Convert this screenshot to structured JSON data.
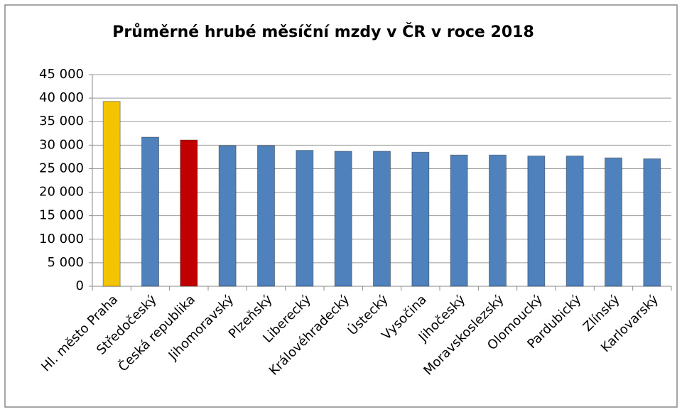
{
  "chart_data": {
    "type": "bar",
    "title": "Průměrné hrubé měsíční mzdy v ČR v roce 2018",
    "categories": [
      "Hl. město Praha",
      "Středočeský",
      "Česká republika",
      "Jihomoravský",
      "Plzeňský",
      "Liberecký",
      "Královéhradecký",
      "Ústecký",
      "Vysočina",
      "Jihočeský",
      "Moravskoslezský",
      "Olomoucký",
      "Pardubický",
      "Zlínský",
      "Karlovarský"
    ],
    "values": [
      39300,
      31700,
      31100,
      29900,
      29900,
      28900,
      28700,
      28700,
      28500,
      27900,
      27900,
      27700,
      27700,
      27300,
      27100
    ],
    "colors": [
      "#f5c400",
      "#4f81bd",
      "#c00000",
      "#4f81bd",
      "#4f81bd",
      "#4f81bd",
      "#4f81bd",
      "#4f81bd",
      "#4f81bd",
      "#4f81bd",
      "#4f81bd",
      "#4f81bd",
      "#4f81bd",
      "#4f81bd",
      "#4f81bd"
    ],
    "ylim": [
      0,
      45000
    ],
    "yticks": [
      0,
      {
        "value": 5000,
        "label": "5 000"
      },
      {
        "value": 10000,
        "label": "10 000"
      },
      {
        "value": 15000,
        "label": "15 000"
      },
      {
        "value": 20000,
        "label": "20 000"
      },
      {
        "value": 25000,
        "label": "25 000"
      },
      {
        "value": 30000,
        "label": "30 000"
      },
      {
        "value": 35000,
        "label": "35 000"
      },
      {
        "value": 40000,
        "label": "40 000"
      },
      {
        "value": 45000,
        "label": "45 000"
      }
    ],
    "grid": true
  }
}
